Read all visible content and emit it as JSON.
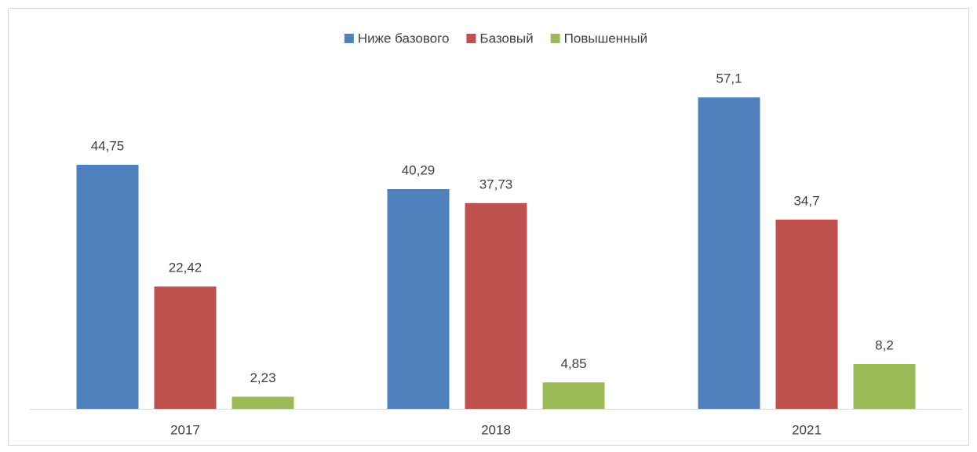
{
  "chart_data": {
    "type": "bar",
    "categories": [
      "2017",
      "2018",
      "2021"
    ],
    "series": [
      {
        "name": "Ниже базового",
        "color": "#4f81bd",
        "values": [
          44.75,
          40.29,
          57.1
        ],
        "value_labels": [
          "44,75",
          "40,29",
          "57,1"
        ]
      },
      {
        "name": "Базовый",
        "color": "#c0504d",
        "values": [
          22.42,
          37.73,
          34.7
        ],
        "value_labels": [
          "22,42",
          "37,73",
          "34,7"
        ]
      },
      {
        "name": "Повышенный",
        "color": "#9bbb59",
        "values": [
          2.23,
          4.85,
          8.2
        ],
        "value_labels": [
          "2,23",
          "4,85",
          "8,2"
        ]
      }
    ],
    "legend": "top"
  }
}
